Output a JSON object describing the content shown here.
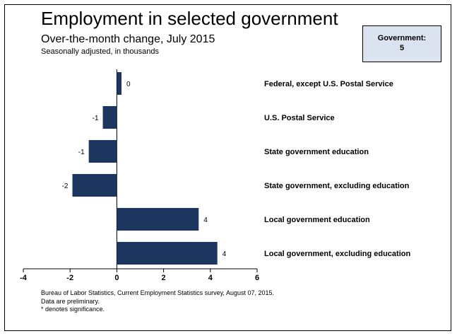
{
  "header": {
    "title": "Employment in selected government",
    "subtitle": "Over-the-month change, July 2015",
    "note": "Seasonally adjusted, in thousands"
  },
  "badge": {
    "label": "Government:",
    "value": "5"
  },
  "footer": {
    "source": "Bureau of Labor Statistics, Current Employment Statistics survey, August 07, 2015.",
    "preliminary": "Data are preliminary.",
    "significance": "* denotes significance."
  },
  "colors": {
    "bar": "#1c3660",
    "badge_bg": "#dbe3f0"
  },
  "chart_data": {
    "type": "bar",
    "orientation": "horizontal",
    "categories": [
      "Federal, except U.S. Postal Service",
      "U.S. Postal Service",
      "State government education",
      "State government, excluding education",
      "Local government education",
      "Local government, excluding education"
    ],
    "values": [
      0.2,
      -0.6,
      -1.2,
      -1.9,
      3.5,
      4.3
    ],
    "value_labels": [
      "0",
      "-1",
      "-1",
      "-2",
      "4",
      "4"
    ],
    "xlim": [
      -4,
      6
    ],
    "xticks": [
      -4,
      -2,
      0,
      2,
      4,
      6
    ],
    "xlabel": "",
    "ylabel": "",
    "grid": false,
    "legend": "none"
  }
}
